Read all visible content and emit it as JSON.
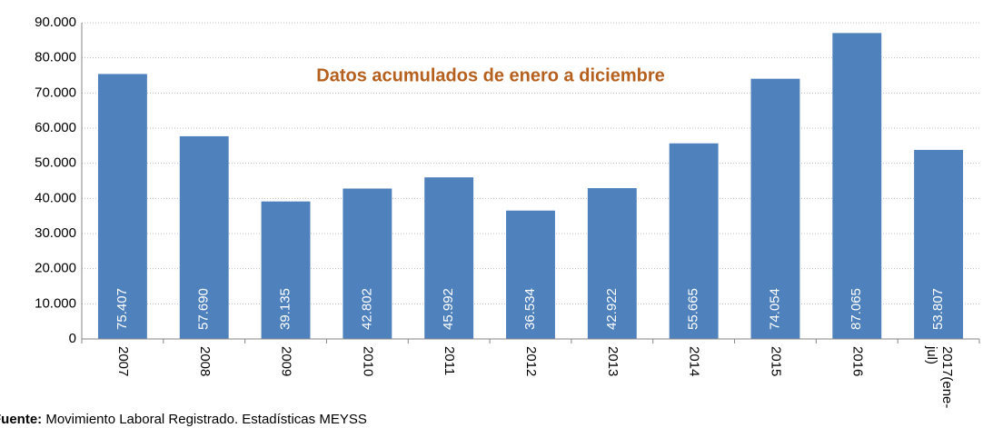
{
  "chart_data": {
    "type": "bar",
    "annotation": "Datos acumulados de enero a diciembre",
    "categories": [
      "2007",
      "2008",
      "2009",
      "2010",
      "2011",
      "2012",
      "2013",
      "2014",
      "2015",
      "2016",
      "2017(ene-jul)"
    ],
    "values": [
      75407,
      57690,
      39135,
      42802,
      45992,
      36534,
      42922,
      55665,
      74054,
      87065,
      53807
    ],
    "value_labels": [
      "75.407",
      "57.690",
      "39.135",
      "42.802",
      "45.992",
      "36.534",
      "42.922",
      "55.665",
      "74.054",
      "87.065",
      "53.807"
    ],
    "color": "#4f81bd",
    "ylim": [
      0,
      90000
    ],
    "yticks": [
      0,
      {
        "value": 10000,
        "label": "10.000"
      },
      {
        "value": 20000,
        "label": "20.000"
      },
      {
        "value": 30000,
        "label": "30.000"
      },
      {
        "value": 40000,
        "label": "40.000"
      },
      {
        "value": 50000,
        "label": "50.000"
      },
      {
        "value": 60000,
        "label": "60.000"
      },
      {
        "value": 70000,
        "label": "70.000"
      },
      {
        "value": 80000,
        "label": "80.000"
      },
      {
        "value": 90000,
        "label": "90.000"
      }
    ],
    "grid": true,
    "source_label": "Fuente:",
    "source": "Movimiento Laboral Registrado. Estadísticas MEYSS"
  }
}
